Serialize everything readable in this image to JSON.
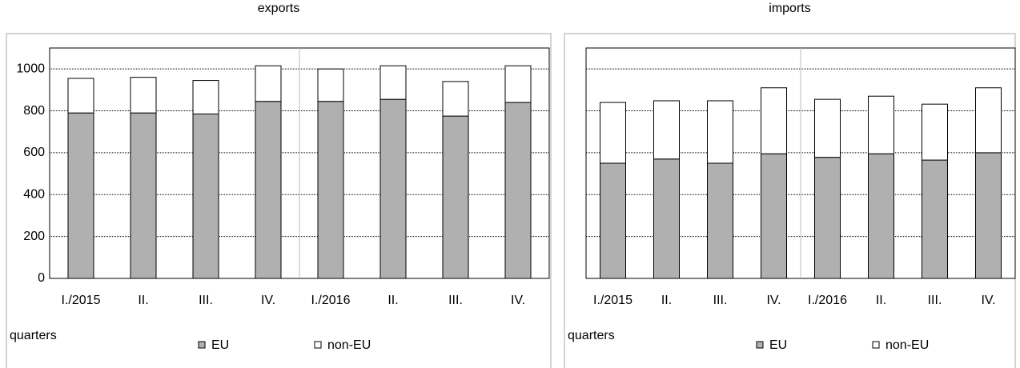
{
  "chart_data": [
    {
      "type": "stacked_bar",
      "title": "exports",
      "xlabel": "quarters",
      "categories": [
        "I./2015",
        "II.",
        "III.",
        "IV.",
        "I./2016",
        "II.",
        "III.",
        "IV."
      ],
      "series": [
        {
          "name": "EU",
          "color": "#b0b0b0",
          "values": [
            790,
            790,
            785,
            845,
            845,
            855,
            775,
            840
          ]
        },
        {
          "name": "non-EU",
          "color": "#ffffff",
          "values": [
            165,
            170,
            160,
            170,
            155,
            160,
            165,
            175
          ]
        }
      ],
      "ylim": [
        0,
        1100
      ],
      "yticks": [
        0,
        200,
        400,
        600,
        800,
        1000
      ],
      "ytick_labels": true,
      "grid": true
    },
    {
      "type": "stacked_bar",
      "title": "imports",
      "xlabel": "quarters",
      "categories": [
        "I./2015",
        "II.",
        "III.",
        "IV.",
        "I./2016",
        "II.",
        "III.",
        "IV."
      ],
      "series": [
        {
          "name": "EU",
          "color": "#b0b0b0",
          "values": [
            550,
            570,
            550,
            595,
            578,
            595,
            565,
            600
          ]
        },
        {
          "name": "non-EU",
          "color": "#ffffff",
          "values": [
            290,
            278,
            298,
            315,
            277,
            275,
            267,
            310
          ]
        }
      ],
      "ylim": [
        0,
        1100
      ],
      "yticks": [
        0,
        200,
        400,
        600,
        800,
        1000
      ],
      "ytick_labels": false,
      "grid": true
    }
  ]
}
